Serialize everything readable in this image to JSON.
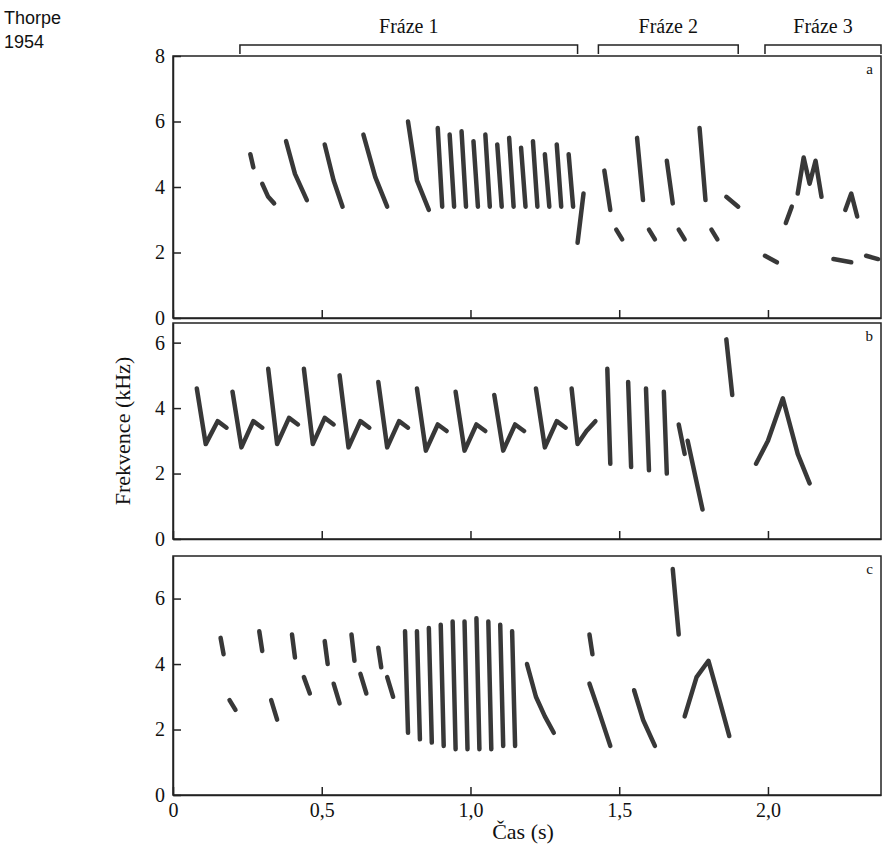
{
  "chart_data": [
    {
      "type": "line",
      "title": "a",
      "color": "#222222",
      "xlim": [
        0,
        2.38
      ],
      "xticks": [
        0,
        0.5,
        1,
        1.5,
        2
      ],
      "ylim": [
        0,
        8
      ],
      "yticks": [
        0,
        2,
        4,
        6,
        8
      ],
      "tick_labels": "y",
      "annotations": [
        {
          "text": "Thorpe 1954"
        },
        {
          "text": "Fráze 1",
          "x": [
            0.225,
            1.36
          ]
        },
        {
          "text": "Fráze 2",
          "x": [
            1.43,
            1.9
          ]
        },
        {
          "text": "Fráze 3",
          "x": [
            1.99,
            2.38
          ]
        }
      ],
      "series": [
        {
          "x": [
            0.26,
            0.27
          ],
          "values": [
            5.0,
            4.6
          ]
        },
        {
          "x": [
            0.3,
            0.32,
            0.34
          ],
          "values": [
            4.1,
            3.7,
            3.5
          ]
        },
        {
          "x": [
            0.38,
            0.41,
            0.45
          ],
          "values": [
            5.4,
            4.4,
            3.6
          ]
        },
        {
          "x": [
            0.51,
            0.54,
            0.57
          ],
          "values": [
            5.3,
            4.2,
            3.4
          ]
        },
        {
          "x": [
            0.64,
            0.68,
            0.72
          ],
          "values": [
            5.6,
            4.3,
            3.4
          ]
        },
        {
          "x": [
            0.79,
            0.82,
            0.86
          ],
          "values": [
            6.0,
            4.2,
            3.3
          ]
        },
        {
          "x": [
            0.89,
            0.905
          ],
          "values": [
            5.8,
            3.4
          ]
        },
        {
          "x": [
            0.93,
            0.945
          ],
          "values": [
            5.6,
            3.4
          ]
        },
        {
          "x": [
            0.97,
            0.985
          ],
          "values": [
            5.7,
            3.4
          ]
        },
        {
          "x": [
            1.01,
            1.025
          ],
          "values": [
            5.4,
            3.4
          ]
        },
        {
          "x": [
            1.05,
            1.065
          ],
          "values": [
            5.6,
            3.4
          ]
        },
        {
          "x": [
            1.09,
            1.105
          ],
          "values": [
            5.3,
            3.4
          ]
        },
        {
          "x": [
            1.13,
            1.145
          ],
          "values": [
            5.5,
            3.4
          ]
        },
        {
          "x": [
            1.17,
            1.185
          ],
          "values": [
            5.2,
            3.4
          ]
        },
        {
          "x": [
            1.21,
            1.225
          ],
          "values": [
            5.4,
            3.4
          ]
        },
        {
          "x": [
            1.25,
            1.265
          ],
          "values": [
            5.0,
            3.4
          ]
        },
        {
          "x": [
            1.29,
            1.305
          ],
          "values": [
            5.3,
            3.4
          ]
        },
        {
          "x": [
            1.33,
            1.345
          ],
          "values": [
            5.0,
            3.4
          ]
        },
        {
          "x": [
            1.36,
            1.38
          ],
          "values": [
            2.3,
            3.8
          ]
        },
        {
          "x": [
            1.45,
            1.47
          ],
          "values": [
            4.5,
            3.3
          ]
        },
        {
          "x": [
            1.49,
            1.51
          ],
          "values": [
            2.7,
            2.4
          ]
        },
        {
          "x": [
            1.56,
            1.58
          ],
          "values": [
            5.5,
            3.6
          ]
        },
        {
          "x": [
            1.6,
            1.62
          ],
          "values": [
            2.7,
            2.4
          ]
        },
        {
          "x": [
            1.66,
            1.68
          ],
          "values": [
            4.8,
            3.5
          ]
        },
        {
          "x": [
            1.7,
            1.72
          ],
          "values": [
            2.7,
            2.4
          ]
        },
        {
          "x": [
            1.77,
            1.79
          ],
          "values": [
            5.8,
            3.6
          ]
        },
        {
          "x": [
            1.81,
            1.83
          ],
          "values": [
            2.7,
            2.4
          ]
        },
        {
          "x": [
            1.86,
            1.9
          ],
          "values": [
            3.7,
            3.4
          ]
        },
        {
          "x": [
            1.99,
            2.03
          ],
          "values": [
            1.9,
            1.7
          ]
        },
        {
          "x": [
            2.06,
            2.08
          ],
          "values": [
            2.9,
            3.4
          ]
        },
        {
          "x": [
            2.1,
            2.12,
            2.14,
            2.16,
            2.18
          ],
          "values": [
            3.8,
            4.9,
            4.1,
            4.8,
            3.7
          ]
        },
        {
          "x": [
            2.22,
            2.28
          ],
          "values": [
            1.8,
            1.7
          ]
        },
        {
          "x": [
            2.26,
            2.28,
            2.3
          ],
          "values": [
            3.3,
            3.8,
            3.1
          ]
        },
        {
          "x": [
            2.33,
            2.37
          ],
          "values": [
            1.9,
            1.8
          ]
        }
      ]
    },
    {
      "type": "line",
      "title": "b",
      "color": "#222222",
      "ylabel": "Frekvence (kHz)",
      "xlim": [
        0,
        2.38
      ],
      "xticks": [
        0,
        0.5,
        1,
        1.5,
        2
      ],
      "ylim": [
        0,
        6.6
      ],
      "yticks": [
        0,
        2,
        4,
        6
      ],
      "tick_labels": "y",
      "series": [
        {
          "x": [
            0.08,
            0.11,
            0.15,
            0.18
          ],
          "values": [
            4.6,
            2.9,
            3.6,
            3.4
          ]
        },
        {
          "x": [
            0.2,
            0.23,
            0.27,
            0.3
          ],
          "values": [
            4.5,
            2.8,
            3.6,
            3.4
          ]
        },
        {
          "x": [
            0.32,
            0.35,
            0.39,
            0.42
          ],
          "values": [
            5.2,
            2.9,
            3.7,
            3.5
          ]
        },
        {
          "x": [
            0.44,
            0.47,
            0.51,
            0.54
          ],
          "values": [
            5.2,
            2.9,
            3.7,
            3.5
          ]
        },
        {
          "x": [
            0.56,
            0.59,
            0.63,
            0.66
          ],
          "values": [
            5.0,
            2.8,
            3.6,
            3.4
          ]
        },
        {
          "x": [
            0.69,
            0.72,
            0.76,
            0.79
          ],
          "values": [
            4.8,
            2.8,
            3.6,
            3.4
          ]
        },
        {
          "x": [
            0.82,
            0.85,
            0.89,
            0.92
          ],
          "values": [
            4.6,
            2.7,
            3.5,
            3.3
          ]
        },
        {
          "x": [
            0.95,
            0.98,
            1.02,
            1.05
          ],
          "values": [
            4.5,
            2.7,
            3.5,
            3.3
          ]
        },
        {
          "x": [
            1.08,
            1.11,
            1.15,
            1.18
          ],
          "values": [
            4.4,
            2.7,
            3.5,
            3.3
          ]
        },
        {
          "x": [
            1.22,
            1.25,
            1.29,
            1.32
          ],
          "values": [
            4.6,
            2.8,
            3.6,
            3.4
          ]
        },
        {
          "x": [
            1.34,
            1.36,
            1.39,
            1.42
          ],
          "values": [
            4.6,
            2.9,
            3.3,
            3.6
          ]
        },
        {
          "x": [
            1.46,
            1.47
          ],
          "values": [
            5.2,
            2.3
          ]
        },
        {
          "x": [
            1.53,
            1.54
          ],
          "values": [
            4.8,
            2.2
          ]
        },
        {
          "x": [
            1.59,
            1.6
          ],
          "values": [
            4.6,
            2.1
          ]
        },
        {
          "x": [
            1.65,
            1.66
          ],
          "values": [
            4.5,
            2.0
          ]
        },
        {
          "x": [
            1.7,
            1.72
          ],
          "values": [
            3.5,
            2.6
          ]
        },
        {
          "x": [
            1.73,
            1.78
          ],
          "values": [
            3.0,
            0.9
          ]
        },
        {
          "x": [
            1.86,
            1.88
          ],
          "values": [
            6.1,
            4.4
          ]
        },
        {
          "x": [
            1.96,
            2.0,
            2.05,
            2.1,
            2.14
          ],
          "values": [
            2.3,
            3.0,
            4.3,
            2.6,
            1.7
          ]
        }
      ]
    },
    {
      "type": "line",
      "title": "c",
      "color": "#222222",
      "xlabel": "Čas (s)",
      "xlim": [
        0,
        2.38
      ],
      "xticks": [
        0,
        {
          "value": 0.5,
          "label": "0,5"
        },
        {
          "value": 1,
          "label": "1,0"
        },
        {
          "value": 1.5,
          "label": "1,5"
        },
        {
          "value": 2,
          "label": "2,0"
        }
      ],
      "ylim": [
        0,
        7.3
      ],
      "yticks": [
        0,
        2,
        4,
        6
      ],
      "series": [
        {
          "x": [
            0.16,
            0.17
          ],
          "values": [
            4.8,
            4.3
          ]
        },
        {
          "x": [
            0.19,
            0.21
          ],
          "values": [
            2.9,
            2.6
          ]
        },
        {
          "x": [
            0.29,
            0.3
          ],
          "values": [
            5.0,
            4.4
          ]
        },
        {
          "x": [
            0.33,
            0.35
          ],
          "values": [
            2.9,
            2.3
          ]
        },
        {
          "x": [
            0.4,
            0.41
          ],
          "values": [
            4.9,
            4.2
          ]
        },
        {
          "x": [
            0.44,
            0.46
          ],
          "values": [
            3.6,
            3.1
          ]
        },
        {
          "x": [
            0.51,
            0.52
          ],
          "values": [
            4.7,
            4.0
          ]
        },
        {
          "x": [
            0.54,
            0.56
          ],
          "values": [
            3.4,
            2.8
          ]
        },
        {
          "x": [
            0.6,
            0.61
          ],
          "values": [
            4.9,
            4.1
          ]
        },
        {
          "x": [
            0.63,
            0.65
          ],
          "values": [
            3.7,
            3.1
          ]
        },
        {
          "x": [
            0.69,
            0.7
          ],
          "values": [
            4.5,
            3.9
          ]
        },
        {
          "x": [
            0.72,
            0.74
          ],
          "values": [
            3.6,
            3.0
          ]
        },
        {
          "x": [
            0.78,
            0.79
          ],
          "values": [
            5.0,
            1.9
          ]
        },
        {
          "x": [
            0.82,
            0.83
          ],
          "values": [
            5.0,
            1.7
          ]
        },
        {
          "x": [
            0.86,
            0.87
          ],
          "values": [
            5.1,
            1.6
          ]
        },
        {
          "x": [
            0.9,
            0.91
          ],
          "values": [
            5.2,
            1.5
          ]
        },
        {
          "x": [
            0.94,
            0.95
          ],
          "values": [
            5.3,
            1.4
          ]
        },
        {
          "x": [
            0.98,
            0.99
          ],
          "values": [
            5.3,
            1.4
          ]
        },
        {
          "x": [
            1.02,
            1.03
          ],
          "values": [
            5.4,
            1.4
          ]
        },
        {
          "x": [
            1.06,
            1.07
          ],
          "values": [
            5.3,
            1.4
          ]
        },
        {
          "x": [
            1.1,
            1.11
          ],
          "values": [
            5.2,
            1.5
          ]
        },
        {
          "x": [
            1.14,
            1.15
          ],
          "values": [
            5.0,
            1.5
          ]
        },
        {
          "x": [
            1.19,
            1.22,
            1.25,
            1.28
          ],
          "values": [
            4.0,
            3.0,
            2.4,
            1.9
          ]
        },
        {
          "x": [
            1.4,
            1.41
          ],
          "values": [
            4.9,
            4.3
          ]
        },
        {
          "x": [
            1.4,
            1.43,
            1.47
          ],
          "values": [
            3.4,
            2.6,
            1.5
          ]
        },
        {
          "x": [
            1.55,
            1.58,
            1.62
          ],
          "values": [
            3.2,
            2.3,
            1.5
          ]
        },
        {
          "x": [
            1.68,
            1.7
          ],
          "values": [
            6.9,
            4.9
          ]
        },
        {
          "x": [
            1.72,
            1.76,
            1.8,
            1.84,
            1.87
          ],
          "values": [
            2.4,
            3.6,
            4.1,
            2.8,
            1.8
          ]
        }
      ]
    }
  ]
}
